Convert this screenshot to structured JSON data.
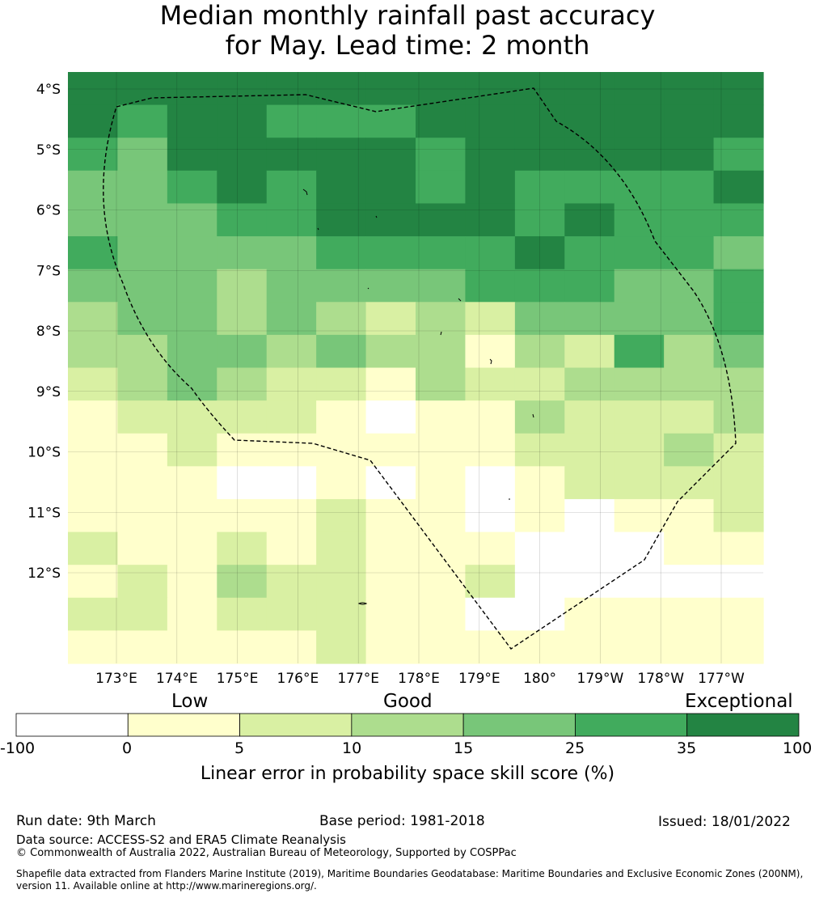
{
  "title": {
    "line1": "Median monthly rainfall past accuracy",
    "line2": "for May. Lead time: 2 month"
  },
  "map": {
    "lat_labels": [
      "4°S",
      "5°S",
      "6°S",
      "7°S",
      "8°S",
      "9°S",
      "10°S",
      "11°S",
      "12°S"
    ],
    "lon_labels": [
      "173°E",
      "174°E",
      "175°E",
      "176°E",
      "177°E",
      "178°E",
      "179°E",
      "180°",
      "179°W",
      "178°W",
      "177°W"
    ],
    "grid": {
      "comment": "skill class per cell (0..6 = bins -100..0, 0..5, 5..10, 10..15, 15..25, 25..35, 35..100); rows north to south, columns west to east",
      "rows": [
        [
          6,
          6,
          6,
          6,
          6,
          6,
          6,
          6,
          6,
          6,
          6,
          6,
          6,
          6
        ],
        [
          6,
          5,
          6,
          6,
          5,
          5,
          5,
          6,
          6,
          6,
          6,
          6,
          6,
          6
        ],
        [
          5,
          4,
          6,
          6,
          6,
          6,
          6,
          5,
          6,
          6,
          6,
          6,
          6,
          5
        ],
        [
          4,
          4,
          5,
          6,
          5,
          6,
          6,
          5,
          6,
          5,
          5,
          5,
          5,
          6
        ],
        [
          4,
          4,
          4,
          5,
          5,
          6,
          6,
          6,
          6,
          5,
          6,
          5,
          5,
          5
        ],
        [
          5,
          4,
          4,
          4,
          4,
          5,
          5,
          5,
          5,
          6,
          5,
          5,
          5,
          4
        ],
        [
          4,
          4,
          4,
          3,
          4,
          4,
          4,
          4,
          5,
          5,
          5,
          4,
          4,
          5
        ],
        [
          3,
          4,
          4,
          3,
          4,
          3,
          2,
          3,
          2,
          4,
          4,
          4,
          4,
          5
        ],
        [
          3,
          3,
          4,
          4,
          3,
          4,
          3,
          3,
          1,
          3,
          2,
          5,
          3,
          4
        ],
        [
          2,
          3,
          4,
          3,
          2,
          2,
          1,
          3,
          2,
          2,
          3,
          3,
          3,
          3
        ],
        [
          1,
          2,
          2,
          2,
          2,
          1,
          0,
          1,
          1,
          3,
          2,
          2,
          2,
          3
        ],
        [
          1,
          1,
          2,
          1,
          1,
          1,
          1,
          1,
          1,
          2,
          2,
          2,
          3,
          2
        ],
        [
          1,
          1,
          1,
          0,
          0,
          1,
          0,
          1,
          0,
          1,
          2,
          2,
          2,
          2
        ],
        [
          1,
          1,
          1,
          1,
          1,
          2,
          1,
          1,
          0,
          1,
          0,
          1,
          1,
          2
        ],
        [
          2,
          1,
          1,
          2,
          1,
          2,
          1,
          1,
          1,
          0,
          0,
          0,
          1,
          1
        ],
        [
          1,
          2,
          1,
          3,
          2,
          2,
          1,
          1,
          2,
          0,
          0,
          0,
          0,
          0
        ],
        [
          2,
          2,
          1,
          2,
          2,
          2,
          1,
          1,
          0,
          0,
          1,
          1,
          1,
          1
        ],
        [
          1,
          1,
          1,
          1,
          1,
          2,
          1,
          1,
          1,
          1,
          1,
          1,
          1,
          1
        ]
      ]
    },
    "colors": [
      "#ffffff",
      "#ffffcc",
      "#d9f0a3",
      "#addd8e",
      "#78c679",
      "#41ab5d",
      "#238443"
    ]
  },
  "legend": {
    "category_low": "Low",
    "category_good": "Good",
    "category_exceptional": "Exceptional",
    "ticks": [
      "-100",
      "0",
      "5",
      "10",
      "15",
      "25",
      "35",
      "100"
    ],
    "label": "Linear error in probability space skill score (%)"
  },
  "footer": {
    "run_date": "Run date: 9th March",
    "base_period": "Base period: 1981-2018",
    "issued": "Issued: 18/01/2022",
    "data_source": "Data source: ACCESS-S2 and ERA5 Climate Reanalysis",
    "copyright": "© Commonwealth of Australia 2022, Australian Bureau of Meteorology, Supported by COSPPac",
    "shapefile_line1": "Shapefile data extracted from Flanders Marine Institute (2019), Maritime Boundaries Geodatabase: Maritime Boundaries and Exclusive Economic Zones (200NM),",
    "shapefile_line2": "version 11. Available online at http://www.marineregions.org/."
  }
}
